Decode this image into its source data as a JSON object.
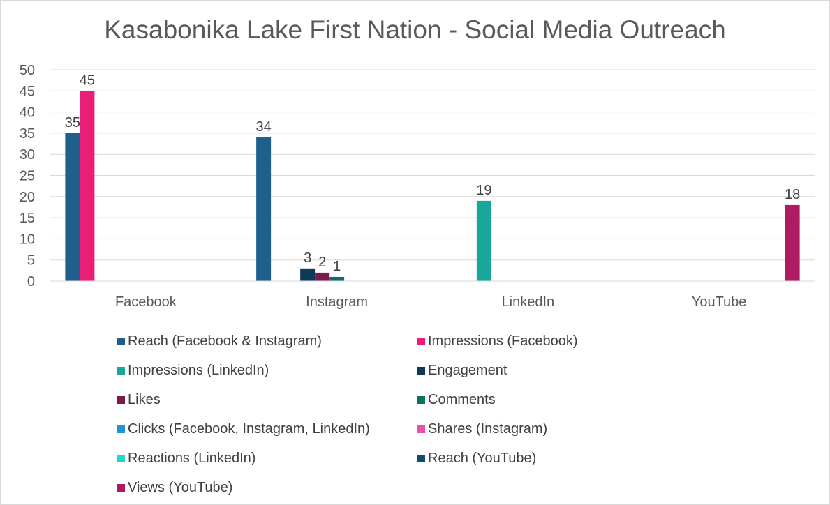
{
  "chart_data": {
    "type": "bar",
    "title": "Kasabonika Lake First Nation - Social Media Outreach",
    "categories": [
      "Facebook",
      "Instagram",
      "LinkedIn",
      "YouTube"
    ],
    "ylim": [
      0,
      50
    ],
    "yticks": [
      0,
      5,
      10,
      15,
      20,
      25,
      30,
      35,
      40,
      45,
      50
    ],
    "grid": true,
    "legend_position": "bottom",
    "series": [
      {
        "name": "Reach (Facebook & Instagram)",
        "color": "#1f5f8b",
        "values": [
          35,
          34,
          null,
          null
        ]
      },
      {
        "name": "Impressions (Facebook)",
        "color": "#e91e78",
        "values": [
          45,
          null,
          null,
          null
        ]
      },
      {
        "name": "Impressions (LinkedIn)",
        "color": "#17a89a",
        "values": [
          null,
          null,
          19,
          null
        ]
      },
      {
        "name": "Engagement",
        "color": "#0f3a57",
        "values": [
          null,
          3,
          null,
          null
        ]
      },
      {
        "name": "Likes",
        "color": "#7a1b4e",
        "values": [
          null,
          2,
          null,
          null
        ]
      },
      {
        "name": "Comments",
        "color": "#0d7065",
        "values": [
          null,
          1,
          null,
          null
        ]
      },
      {
        "name": "Clicks (Facebook, Instagram, LinkedIn)",
        "color": "#1e96d6",
        "values": [
          null,
          null,
          null,
          null
        ]
      },
      {
        "name": "Shares (Instagram)",
        "color": "#ef4fa6",
        "values": [
          null,
          null,
          null,
          null
        ]
      },
      {
        "name": "Reactions (LinkedIn)",
        "color": "#21d6d0",
        "values": [
          null,
          null,
          null,
          null
        ]
      },
      {
        "name": "Reach (YouTube)",
        "color": "#0e4d70",
        "values": [
          null,
          null,
          null,
          null
        ]
      },
      {
        "name": "Views (YouTube)",
        "color": "#b01a63",
        "values": [
          null,
          null,
          null,
          18
        ]
      }
    ]
  }
}
